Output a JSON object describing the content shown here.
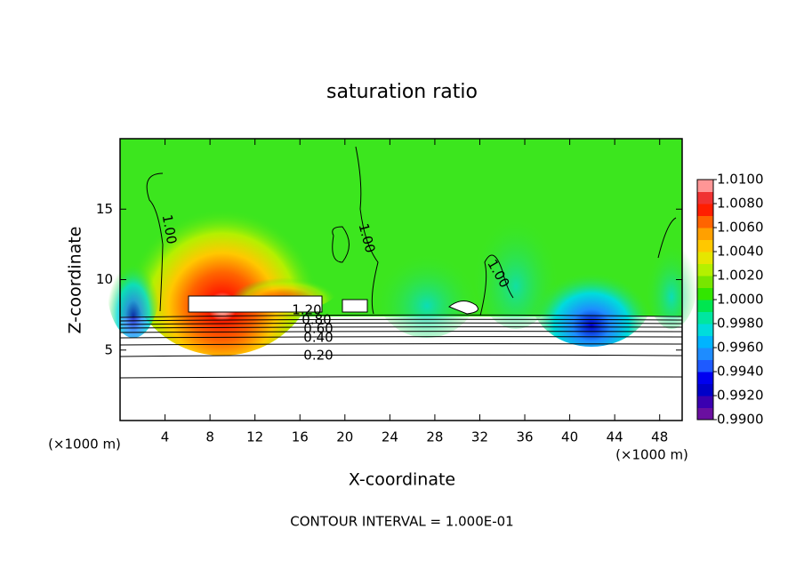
{
  "chart_data": {
    "type": "contour",
    "title": "saturation ratio",
    "xlabel": "X-coordinate",
    "ylabel": "Z-coordinate",
    "x_unit": "(×1000 m)",
    "y_unit": "(×1000 m)",
    "xlim": [
      0,
      50
    ],
    "ylim": [
      0,
      20
    ],
    "xticks": [
      4,
      8,
      12,
      16,
      20,
      24,
      28,
      32,
      36,
      40,
      44,
      48
    ],
    "yticks": [
      5,
      10,
      15
    ],
    "contour_interval": "CONTOUR INTERVAL = 1.000E-01",
    "contour_labels": [
      {
        "value": 1,
        "label": "1.00"
      },
      {
        "value": 1,
        "label": "1.00"
      },
      {
        "value": 1,
        "label": "1.00"
      },
      {
        "value": 1.2,
        "label": "1.20"
      },
      {
        "value": 0.8,
        "label": "0.80"
      },
      {
        "value": 0.6,
        "label": "0.60"
      },
      {
        "value": 0.4,
        "label": "0.40"
      },
      {
        "value": 0.2,
        "label": "0.20"
      }
    ],
    "colorbar": {
      "lim": [
        0.99,
        1.01
      ],
      "ticks": [
        {
          "value": 0.99,
          "label": "0.9900"
        },
        {
          "value": 0.992,
          "label": "0.9920"
        },
        {
          "value": 0.994,
          "label": "0.9940"
        },
        {
          "value": 0.996,
          "label": "0.9960"
        },
        {
          "value": 0.998,
          "label": "0.9980"
        },
        {
          "value": 1,
          "label": "1.0000"
        },
        {
          "value": 1.002,
          "label": "1.0020"
        },
        {
          "value": 1.004,
          "label": "1.0040"
        },
        {
          "value": 1.006,
          "label": "1.0060"
        },
        {
          "value": 1.008,
          "label": "1.0080"
        },
        {
          "value": 1.01,
          "label": "1.0100"
        }
      ],
      "colors": [
        "#6a0fa0",
        "#3a00b0",
        "#0000c8",
        "#0000f0",
        "#1e5aff",
        "#1e8cff",
        "#00b4ff",
        "#00dcdc",
        "#00e6a0",
        "#00e650",
        "#32e600",
        "#78e600",
        "#b4f000",
        "#e6e600",
        "#ffc800",
        "#ffa000",
        "#ff6400",
        "#ff1e00",
        "#f03232",
        "#ff9696"
      ]
    }
  }
}
